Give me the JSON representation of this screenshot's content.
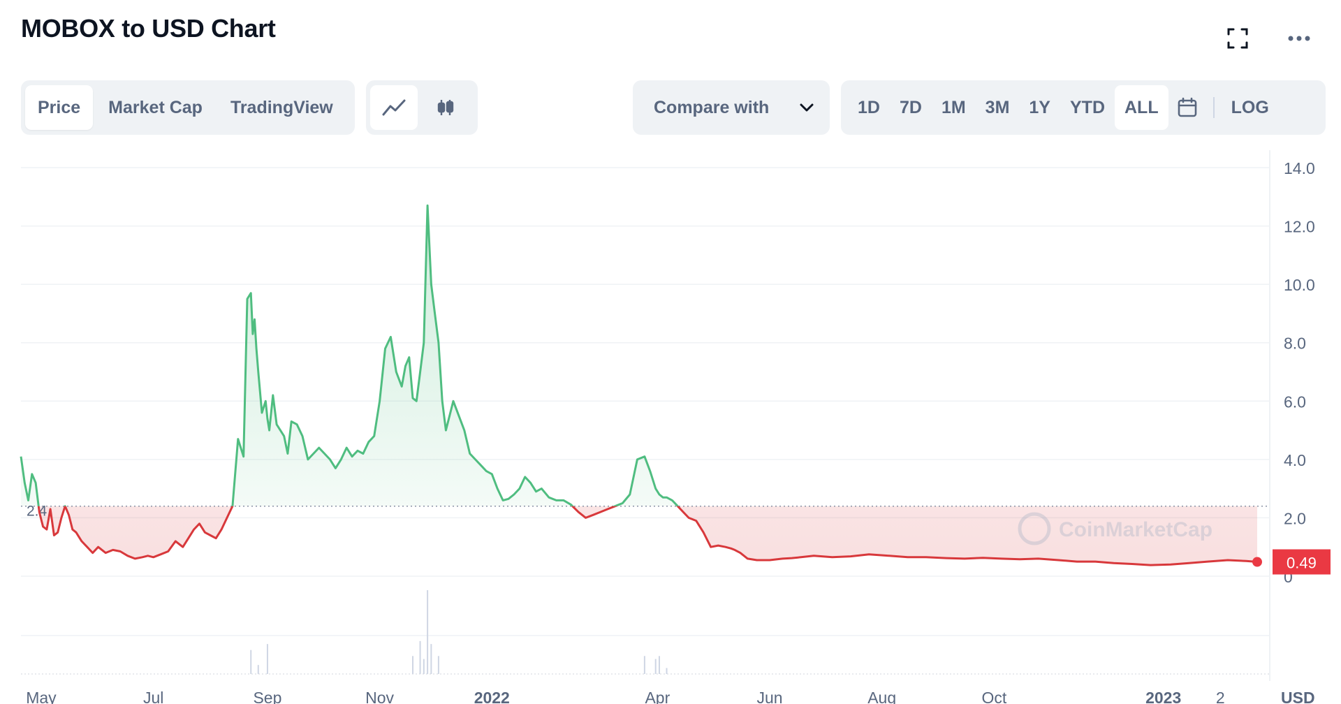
{
  "header": {
    "title": "MOBOX to USD Chart",
    "fullscreen_icon": "fullscreen-icon",
    "more_icon": "more-horizontal-icon"
  },
  "tabs": [
    {
      "label": "Price",
      "active": true
    },
    {
      "label": "Market Cap",
      "active": false
    },
    {
      "label": "TradingView",
      "active": false
    }
  ],
  "chart_type_buttons": [
    {
      "icon": "line-chart-icon",
      "active": true
    },
    {
      "icon": "candlestick-icon",
      "active": false
    }
  ],
  "compare": {
    "label": "Compare with",
    "icon": "chevron-down-icon"
  },
  "ranges": [
    {
      "label": "1D",
      "active": false
    },
    {
      "label": "7D",
      "active": false
    },
    {
      "label": "1M",
      "active": false
    },
    {
      "label": "3M",
      "active": false
    },
    {
      "label": "1Y",
      "active": false
    },
    {
      "label": "YTD",
      "active": false
    },
    {
      "label": "ALL",
      "active": true
    }
  ],
  "calendar_icon": "calendar-icon",
  "log_label": "LOG",
  "colors": {
    "up": "#4fbd80",
    "down": "#d8383b",
    "grid": "#eff2f5",
    "axis_text": "#58667e",
    "last_price_bg": "#ea3943"
  },
  "chart_data": {
    "type": "line",
    "title": "MOBOX to USD Chart",
    "y_ticks": [
      "14.0",
      "12.0",
      "10.0",
      "8.0",
      "6.0",
      "4.0",
      "2.0",
      "0"
    ],
    "ylim": [
      0,
      14
    ],
    "x_ticks": [
      "May",
      "Jul",
      "Sep",
      "Nov",
      "2022",
      "Apr",
      "Jun",
      "Aug",
      "Oct",
      "2023",
      "2"
    ],
    "x_tick_dates": [
      "2021-05-01",
      "2021-07-01",
      "2021-09-01",
      "2021-11-01",
      "2022-01-01",
      "2022-04-01",
      "2022-06-01",
      "2022-08-01",
      "2022-10-01",
      "2023-01-01",
      "2023-02-01"
    ],
    "bold_ticks": [
      "2022",
      "2023"
    ],
    "currency_label": "USD",
    "baseline_value": 2.4,
    "baseline_label": "2.4",
    "last_price": 0.49,
    "last_price_label": "0.49",
    "watermark": "CoinMarketCap",
    "grid": true,
    "series": [
      {
        "x": [
          "2021-04-20",
          "2021-04-22",
          "2021-04-24",
          "2021-04-26",
          "2021-04-28",
          "2021-04-30",
          "2021-05-02",
          "2021-05-04",
          "2021-05-06",
          "2021-05-08",
          "2021-05-10",
          "2021-05-12",
          "2021-05-14",
          "2021-05-16",
          "2021-05-18",
          "2021-05-20",
          "2021-05-23",
          "2021-05-26",
          "2021-05-29",
          "2021-06-01",
          "2021-06-05",
          "2021-06-09",
          "2021-06-13",
          "2021-06-17",
          "2021-06-21",
          "2021-06-25",
          "2021-06-28",
          "2021-07-01",
          "2021-07-05",
          "2021-07-09",
          "2021-07-13",
          "2021-07-17",
          "2021-07-20",
          "2021-07-23",
          "2021-07-26",
          "2021-07-29",
          "2021-08-01",
          "2021-08-04",
          "2021-08-07",
          "2021-08-10",
          "2021-08-13",
          "2021-08-16",
          "2021-08-19",
          "2021-08-21",
          "2021-08-23",
          "2021-08-24",
          "2021-08-25",
          "2021-08-26",
          "2021-08-27",
          "2021-08-29",
          "2021-08-31",
          "2021-09-01",
          "2021-09-02",
          "2021-09-04",
          "2021-09-06",
          "2021-09-08",
          "2021-09-10",
          "2021-09-12",
          "2021-09-14",
          "2021-09-17",
          "2021-09-20",
          "2021-09-23",
          "2021-09-26",
          "2021-09-29",
          "2021-10-02",
          "2021-10-05",
          "2021-10-08",
          "2021-10-11",
          "2021-10-14",
          "2021-10-17",
          "2021-10-20",
          "2021-10-23",
          "2021-10-26",
          "2021-10-29",
          "2021-11-01",
          "2021-11-04",
          "2021-11-07",
          "2021-11-10",
          "2021-11-13",
          "2021-11-15",
          "2021-11-17",
          "2021-11-19",
          "2021-11-21",
          "2021-11-23",
          "2021-11-25",
          "2021-11-27",
          "2021-11-29",
          "2021-12-01",
          "2021-12-03",
          "2021-12-05",
          "2021-12-07",
          "2021-12-09",
          "2021-12-11",
          "2021-12-14",
          "2021-12-17",
          "2021-12-20",
          "2021-12-23",
          "2021-12-26",
          "2021-12-29",
          "2022-01-01",
          "2022-01-04",
          "2022-01-07",
          "2022-01-10",
          "2022-01-13",
          "2022-01-16",
          "2022-01-19",
          "2022-01-22",
          "2022-01-25",
          "2022-01-28",
          "2022-02-01",
          "2022-02-05",
          "2022-02-09",
          "2022-02-13",
          "2022-02-17",
          "2022-02-21",
          "2022-02-25",
          "2022-03-01",
          "2022-03-05",
          "2022-03-09",
          "2022-03-13",
          "2022-03-17",
          "2022-03-21",
          "2022-03-25",
          "2022-03-28",
          "2022-03-31",
          "2022-04-02",
          "2022-04-04",
          "2022-04-06",
          "2022-04-09",
          "2022-04-12",
          "2022-04-15",
          "2022-04-18",
          "2022-04-22",
          "2022-04-26",
          "2022-04-30",
          "2022-05-04",
          "2022-05-08",
          "2022-05-11",
          "2022-05-13",
          "2022-05-16",
          "2022-05-20",
          "2022-05-25",
          "2022-06-01",
          "2022-06-08",
          "2022-06-13",
          "2022-06-18",
          "2022-06-25",
          "2022-07-05",
          "2022-07-15",
          "2022-07-25",
          "2022-08-05",
          "2022-08-15",
          "2022-08-25",
          "2022-09-05",
          "2022-09-15",
          "2022-09-25",
          "2022-10-05",
          "2022-10-15",
          "2022-10-25",
          "2022-11-05",
          "2022-11-15",
          "2022-11-25",
          "2022-12-05",
          "2022-12-15",
          "2022-12-25",
          "2023-01-05",
          "2023-01-15",
          "2023-01-25",
          "2023-02-05",
          "2023-02-15",
          "2023-02-21"
        ],
        "values": [
          4.1,
          3.2,
          2.6,
          3.5,
          3.2,
          2.2,
          1.7,
          1.6,
          2.3,
          1.4,
          1.5,
          2.0,
          2.4,
          2.1,
          1.6,
          1.5,
          1.2,
          1.0,
          0.8,
          1.0,
          0.8,
          0.9,
          0.85,
          0.7,
          0.6,
          0.65,
          0.7,
          0.65,
          0.75,
          0.85,
          1.2,
          1.0,
          1.3,
          1.6,
          1.8,
          1.5,
          1.4,
          1.3,
          1.6,
          2.0,
          2.4,
          4.7,
          4.1,
          9.5,
          9.7,
          8.3,
          8.8,
          7.8,
          7.0,
          5.6,
          6.0,
          5.4,
          5.0,
          6.2,
          5.2,
          5.0,
          4.8,
          4.2,
          5.3,
          5.2,
          4.8,
          4.0,
          4.2,
          4.4,
          4.2,
          4.0,
          3.7,
          4.0,
          4.4,
          4.1,
          4.3,
          4.2,
          4.6,
          4.8,
          6.0,
          7.8,
          8.2,
          7.0,
          6.5,
          7.2,
          7.5,
          6.1,
          6.0,
          7.0,
          8.0,
          12.7,
          10.0,
          9.0,
          8.0,
          6.0,
          5.0,
          5.5,
          6.0,
          5.5,
          5.0,
          4.2,
          4.0,
          3.8,
          3.6,
          3.5,
          3.0,
          2.6,
          2.65,
          2.8,
          3.0,
          3.4,
          3.2,
          2.9,
          3.0,
          2.7,
          2.6,
          2.6,
          2.45,
          2.2,
          2.0,
          2.1,
          2.2,
          2.3,
          2.4,
          2.5,
          2.8,
          4.0,
          4.1,
          3.6,
          3.0,
          2.8,
          2.7,
          2.7,
          2.6,
          2.4,
          2.2,
          2.0,
          1.9,
          1.5,
          1.0,
          1.05,
          1.0,
          0.95,
          0.9,
          0.8,
          0.6,
          0.55,
          0.55,
          0.6,
          0.62,
          0.65,
          0.7,
          0.65,
          0.68,
          0.75,
          0.7,
          0.65,
          0.65,
          0.62,
          0.6,
          0.63,
          0.6,
          0.58,
          0.6,
          0.55,
          0.5,
          0.5,
          0.45,
          0.42,
          0.38,
          0.4,
          0.45,
          0.5,
          0.55,
          0.52,
          0.49
        ]
      }
    ],
    "volume": {
      "x": [
        "2021-08-23",
        "2021-08-27",
        "2021-09-01",
        "2021-11-19",
        "2021-11-23",
        "2021-11-25",
        "2021-11-27",
        "2021-11-29",
        "2021-12-03",
        "2022-03-25",
        "2022-03-31",
        "2022-04-02",
        "2022-04-06"
      ],
      "values": [
        8,
        3,
        10,
        6,
        11,
        5,
        28,
        10,
        6,
        6,
        5,
        6,
        2
      ]
    }
  }
}
